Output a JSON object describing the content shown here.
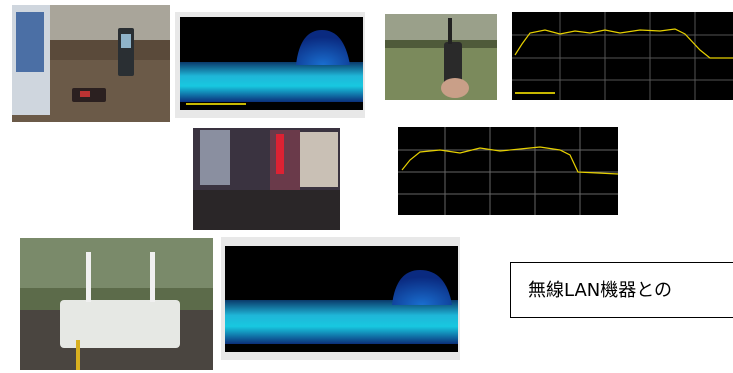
{
  "caption": {
    "text": "無線LAN機器との"
  }
}
